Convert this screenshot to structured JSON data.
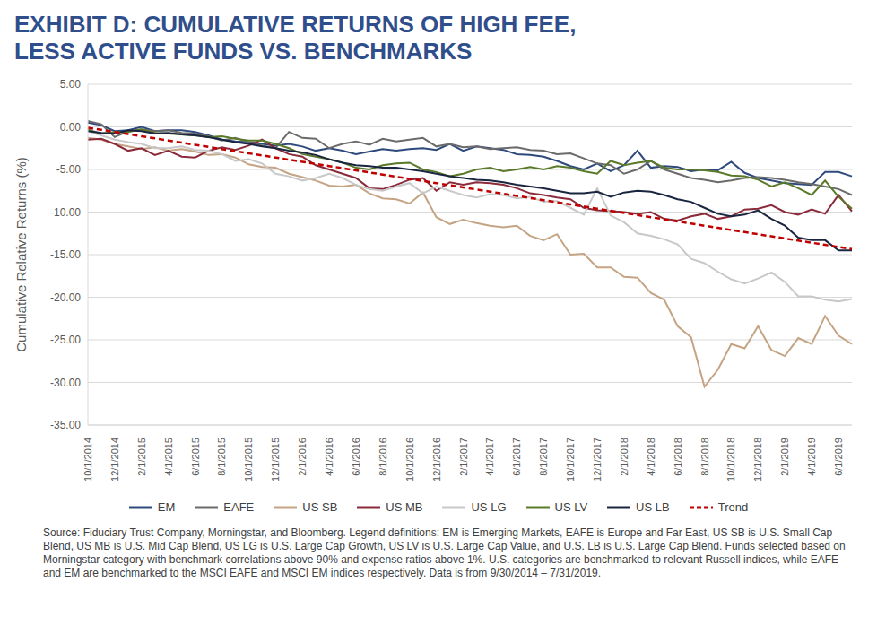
{
  "chart_data": {
    "type": "line",
    "title": "EXHIBIT D: CUMULATIVE RETURNS OF HIGH FEE, LESS ACTIVE FUNDS VS. BENCHMARKS",
    "y_label": "Cumulative Relative Returns (%)",
    "footnote": "Source: Fiduciary Trust Company, Morningstar, and Bloomberg. Legend definitions: EM is Emerging Markets, EAFE is Europe and Far East, US SB is U.S. Small Cap Blend, US MB is U.S. Mid Cap Blend, US LG is U.S. Large Cap Growth, US LV is U.S. Large Cap Value, and U.S. LB is U.S. Large Cap Blend. Funds selected based on Morningstar category with benchmark correlations above 90% and expense ratios above 1%. U.S. categories are benchmarked to relevant Russell indices, while EAFE and EM are benchmarked to the MSCI EAFE and MSCI EM indices respectively. Data is from 9/30/2014 – 7/31/2019.",
    "categories": [
      "10/1/2014",
      null,
      "12/1/2014",
      null,
      "2/1/2015",
      null,
      "4/1/2015",
      null,
      "6/1/2015",
      null,
      "8/1/2015",
      null,
      "10/1/2015",
      null,
      "12/1/2015",
      null,
      "2/1/2016",
      null,
      "4/1/2016",
      null,
      "6/1/2016",
      null,
      "8/1/2016",
      null,
      "10/1/2016",
      null,
      "12/1/2016",
      null,
      "2/1/2017",
      null,
      "4/1/2017",
      null,
      "6/1/2017",
      null,
      "8/1/2017",
      null,
      "10/1/2017",
      null,
      "12/1/2017",
      null,
      "2/1/2018",
      null,
      "4/1/2018",
      null,
      "6/1/2018",
      null,
      "8/1/2018",
      null,
      "10/1/2018",
      null,
      "12/1/2018",
      null,
      "2/1/2019",
      null,
      "4/1/2019",
      null,
      "6/1/2019",
      null
    ],
    "ylim": [
      -35,
      5
    ],
    "yticks": [
      {
        "value": -35,
        "label": "-35.00"
      },
      {
        "value": -30,
        "label": "-30.00"
      },
      {
        "value": -25,
        "label": "-25.00"
      },
      {
        "value": -20,
        "label": "-20.00"
      },
      {
        "value": -15,
        "label": "-15.00"
      },
      {
        "value": -10,
        "label": "-10.00"
      },
      {
        "value": -5,
        "label": "-5.00"
      },
      {
        "value": 0,
        "label": "0.00"
      },
      {
        "value": 5,
        "label": "5.00"
      }
    ],
    "grid": true,
    "legend": "bottom",
    "series": [
      {
        "name": "EM",
        "color": "#2e4a7d",
        "values": [
          0.5,
          0.2,
          -0.5,
          -0.4,
          0.0,
          -0.5,
          -0.4,
          -0.4,
          -0.6,
          -1.0,
          -1.5,
          -1.7,
          -1.8,
          -2.0,
          -2.2,
          -2.0,
          -2.3,
          -2.8,
          -2.5,
          -2.8,
          -3.2,
          -2.9,
          -2.6,
          -2.8,
          -2.6,
          -2.5,
          -2.7,
          -2.0,
          -2.8,
          -2.3,
          -2.5,
          -2.7,
          -3.2,
          -3.3,
          -3.5,
          -4.0,
          -4.6,
          -5.0,
          -4.3,
          -5.2,
          -4.5,
          -2.8,
          -4.8,
          -4.6,
          -4.7,
          -5.2,
          -5.0,
          -5.1,
          -4.1,
          -5.4,
          -6.0,
          -6.3,
          -6.6,
          -6.7,
          -6.8,
          -5.3,
          -5.3,
          -5.8
        ]
      },
      {
        "name": "EAFE",
        "color": "#6b6b6b",
        "values": [
          0.7,
          0.3,
          -1.2,
          -0.5,
          -0.3,
          -0.5,
          -0.4,
          -0.7,
          -0.8,
          -1.1,
          -1.6,
          -1.3,
          -1.8,
          -2.2,
          -2.5,
          -0.6,
          -1.3,
          -1.4,
          -2.5,
          -2.0,
          -1.7,
          -2.1,
          -1.4,
          -1.7,
          -1.5,
          -1.3,
          -2.3,
          -2.0,
          -2.4,
          -2.3,
          -2.6,
          -2.5,
          -2.4,
          -2.7,
          -2.8,
          -3.2,
          -3.1,
          -3.7,
          -4.3,
          -4.5,
          -5.5,
          -5.0,
          -4.0,
          -5.0,
          -5.5,
          -6.0,
          -6.2,
          -6.5,
          -6.3,
          -6.0,
          -5.9,
          -6.0,
          -6.2,
          -6.5,
          -6.7,
          -7.0,
          -7.3,
          -8.0
        ]
      },
      {
        "name": "US SB",
        "color": "#c4a484",
        "values": [
          -1.3,
          -1.5,
          -2.0,
          -2.3,
          -2.6,
          -2.4,
          -2.8,
          -2.6,
          -2.9,
          -3.3,
          -3.2,
          -3.6,
          -4.4,
          -4.7,
          -4.8,
          -5.5,
          -5.9,
          -6.3,
          -6.9,
          -7.0,
          -6.8,
          -7.8,
          -8.4,
          -8.5,
          -9.0,
          -7.7,
          -10.6,
          -11.4,
          -10.9,
          -11.3,
          -11.6,
          -11.8,
          -11.6,
          -12.8,
          -13.3,
          -12.6,
          -15.0,
          -14.9,
          -16.5,
          -16.5,
          -17.6,
          -17.7,
          -19.5,
          -20.3,
          -23.4,
          -24.7,
          -30.5,
          -28.5,
          -25.5,
          -26.0,
          -23.4,
          -26.2,
          -26.9,
          -24.8,
          -25.5,
          -22.2,
          -24.5,
          -25.5
        ]
      },
      {
        "name": "US MB",
        "color": "#8b2a3a",
        "values": [
          -1.5,
          -1.4,
          -2.0,
          -2.8,
          -2.5,
          -3.3,
          -2.8,
          -3.5,
          -3.6,
          -2.8,
          -2.4,
          -2.7,
          -2.2,
          -1.5,
          -2.5,
          -3.2,
          -3.5,
          -4.5,
          -5.0,
          -5.5,
          -6.0,
          -7.2,
          -7.3,
          -6.8,
          -6.2,
          -6.0,
          -7.5,
          -6.5,
          -6.8,
          -6.5,
          -6.6,
          -6.8,
          -7.2,
          -7.8,
          -8.0,
          -8.3,
          -8.5,
          -9.5,
          -9.8,
          -9.9,
          -10.0,
          -10.2,
          -10.0,
          -10.8,
          -11.0,
          -10.5,
          -10.2,
          -10.8,
          -10.5,
          -9.7,
          -9.6,
          -9.2,
          -10.0,
          -10.3,
          -9.7,
          -10.2,
          -8.0,
          -9.9
        ]
      },
      {
        "name": "US LG",
        "color": "#c8c8c8",
        "values": [
          -0.5,
          -1.0,
          -1.5,
          -1.8,
          -2.0,
          -2.5,
          -2.5,
          -2.3,
          -2.7,
          -2.8,
          -3.2,
          -4.0,
          -3.8,
          -4.3,
          -5.5,
          -5.8,
          -6.3,
          -6.0,
          -5.5,
          -6.0,
          -6.8,
          -7.3,
          -7.5,
          -7.0,
          -6.6,
          -7.8,
          -7.0,
          -7.5,
          -8.0,
          -8.3,
          -7.9,
          -8.0,
          -8.4,
          -8.2,
          -8.8,
          -8.7,
          -9.5,
          -10.3,
          -7.2,
          -10.4,
          -11.2,
          -12.5,
          -12.8,
          -13.2,
          -13.8,
          -15.5,
          -16.0,
          -17.0,
          -17.9,
          -18.4,
          -17.8,
          -17.1,
          -18.2,
          -19.9,
          -19.9,
          -20.3,
          -20.5,
          -20.2
        ]
      },
      {
        "name": "US LV",
        "color": "#5a7a2a",
        "values": [
          -0.3,
          -0.8,
          -0.6,
          -0.6,
          -0.3,
          -0.7,
          -0.8,
          -0.9,
          -1.0,
          -1.2,
          -1.1,
          -1.4,
          -1.6,
          -1.6,
          -2.0,
          -2.5,
          -3.2,
          -3.5,
          -3.8,
          -4.2,
          -4.8,
          -5.0,
          -4.5,
          -4.3,
          -4.2,
          -5.0,
          -5.3,
          -5.8,
          -5.5,
          -5.0,
          -4.8,
          -5.2,
          -5.0,
          -4.7,
          -5.0,
          -4.6,
          -4.8,
          -5.2,
          -5.5,
          -4.0,
          -4.5,
          -4.2,
          -4.0,
          -4.8,
          -5.0,
          -5.0,
          -5.1,
          -5.3,
          -5.7,
          -5.8,
          -6.2,
          -7.0,
          -6.5,
          -7.2,
          -8.0,
          -6.3,
          -8.2,
          -9.6
        ]
      },
      {
        "name": "US LB",
        "color": "#1a2540",
        "values": [
          -0.5,
          -0.7,
          -0.8,
          -0.4,
          -0.5,
          -0.8,
          -0.7,
          -0.9,
          -1.0,
          -1.2,
          -1.5,
          -1.8,
          -2.0,
          -2.3,
          -2.5,
          -2.8,
          -3.0,
          -3.3,
          -3.8,
          -4.2,
          -4.5,
          -4.6,
          -4.8,
          -4.8,
          -5.0,
          -5.2,
          -5.5,
          -5.8,
          -6.0,
          -6.2,
          -6.3,
          -6.5,
          -6.8,
          -7.0,
          -7.2,
          -7.5,
          -7.8,
          -7.8,
          -7.6,
          -8.2,
          -7.7,
          -7.5,
          -7.6,
          -8.0,
          -8.5,
          -8.8,
          -9.5,
          -10.2,
          -10.5,
          -10.3,
          -9.8,
          -10.8,
          -11.6,
          -13.0,
          -13.3,
          -13.3,
          -14.5,
          -14.5
        ]
      },
      {
        "name": "Trend",
        "color": "#c00000",
        "line_style": "dashed",
        "values": [
          -0.1,
          -0.35,
          -0.6,
          -0.85,
          -1.1,
          -1.35,
          -1.6,
          -1.85,
          -2.1,
          -2.35,
          -2.6,
          -2.85,
          -3.1,
          -3.35,
          -3.6,
          -3.85,
          -4.1,
          -4.35,
          -4.6,
          -4.85,
          -5.1,
          -5.35,
          -5.6,
          -5.85,
          -6.1,
          -6.35,
          -6.6,
          -6.85,
          -7.1,
          -7.35,
          -7.6,
          -7.85,
          -8.1,
          -8.35,
          -8.6,
          -8.85,
          -9.1,
          -9.35,
          -9.6,
          -9.85,
          -10.1,
          -10.35,
          -10.6,
          -10.85,
          -11.1,
          -11.35,
          -11.6,
          -11.85,
          -12.1,
          -12.35,
          -12.6,
          -12.85,
          -13.1,
          -13.35,
          -13.6,
          -13.85,
          -14.1,
          -14.35
        ]
      }
    ]
  }
}
